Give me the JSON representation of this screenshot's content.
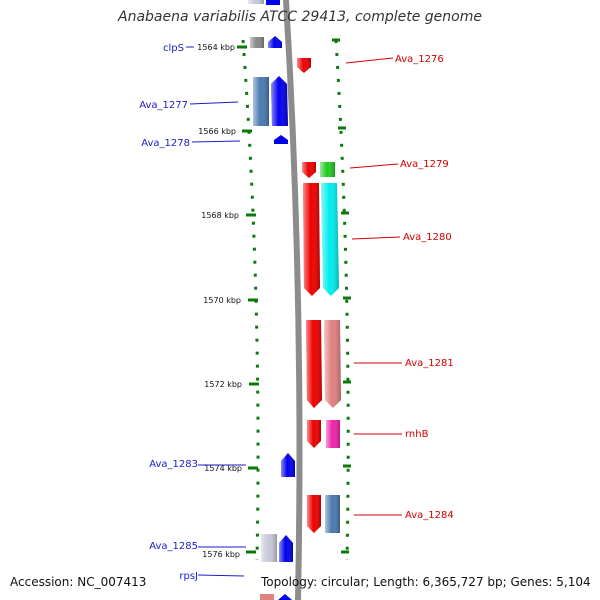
{
  "title": "Anabaena variabilis ATCC 29413, complete genome",
  "footer": {
    "accession": "Accession: NC_007413",
    "topology": "Topology: circular; Length: 6,365,727 bp; Genes: 5,104"
  },
  "colors": {
    "backbone": "#8c8c8c",
    "ruler_tick": "#0a7a0a",
    "forward_label": "#1b1bcc",
    "reverse_label": "#d40000",
    "blue": "#0000ee",
    "steel": "#4a7ab0",
    "red": "#ee0000",
    "green": "#22cc22",
    "cyan": "#00eeee",
    "rose": "#e08080",
    "magenta": "#ee22aa",
    "grey": "#888888",
    "pale": "#c8c8d8"
  },
  "ruler": [
    {
      "label": "1564 kbp"
    },
    {
      "label": "1566 kbp"
    },
    {
      "label": "1568 kbp"
    },
    {
      "label": "1570 kbp"
    },
    {
      "label": "1572 kbp"
    },
    {
      "label": "1574 kbp"
    },
    {
      "label": "1576 kbp"
    }
  ],
  "gene_labels": [
    {
      "name": "clpS",
      "strand": "forward"
    },
    {
      "name": "Ava_1276",
      "strand": "reverse"
    },
    {
      "name": "Ava_1277",
      "strand": "forward"
    },
    {
      "name": "Ava_1278",
      "strand": "forward"
    },
    {
      "name": "Ava_1279",
      "strand": "reverse"
    },
    {
      "name": "Ava_1280",
      "strand": "reverse"
    },
    {
      "name": "Ava_1281",
      "strand": "reverse"
    },
    {
      "name": "rnhB",
      "strand": "reverse"
    },
    {
      "name": "Ava_1283",
      "strand": "forward"
    },
    {
      "name": "Ava_1284",
      "strand": "reverse"
    },
    {
      "name": "Ava_1285",
      "strand": "forward"
    },
    {
      "name": "rpsJ",
      "strand": "forward"
    }
  ]
}
